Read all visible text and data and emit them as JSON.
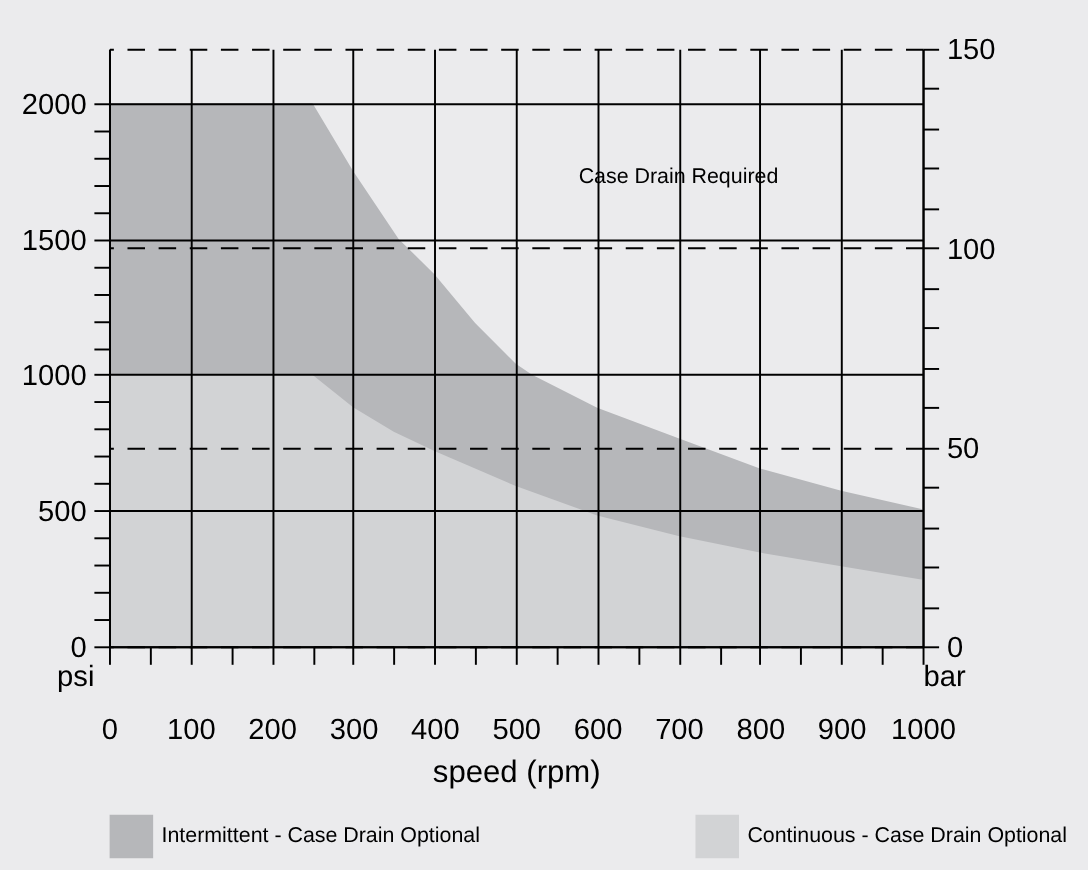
{
  "chart_data": {
    "type": "area",
    "xlabel": "speed (rpm)",
    "ylabel": "psi",
    "y2label": "bar",
    "series": [
      {
        "name": "Intermittent - Case Drain Optional",
        "color": "#b6b7ba",
        "x": [
          0,
          250,
          300,
          356,
          400,
          450,
          500,
          520,
          600,
          700,
          800,
          900,
          1000
        ],
        "values": [
          2000,
          2000,
          1750,
          1500,
          1370,
          1190,
          1040,
          1000,
          878,
          766,
          655,
          573,
          505
        ]
      },
      {
        "name": "Continuous - Case Drain Optional",
        "color": "#d2d3d5",
        "x": [
          0,
          250,
          300,
          350,
          400,
          500,
          600,
          700,
          800,
          900,
          1000
        ],
        "values": [
          1000,
          1000,
          880,
          790,
          719,
          590,
          482,
          406,
          345,
          295,
          245
        ]
      }
    ],
    "xlim": [
      0,
      1000
    ],
    "ylim": [
      0,
      2200
    ],
    "y2lim": [
      0,
      150
    ],
    "xticks": [
      0,
      {
        "value": 50,
        "label": null
      },
      100,
      {
        "value": 150,
        "label": null
      },
      200,
      {
        "value": 250,
        "label": null
      },
      300,
      {
        "value": 350,
        "label": null
      },
      400,
      {
        "value": 450,
        "label": null
      },
      500,
      {
        "value": 550,
        "label": null
      },
      600,
      {
        "value": 650,
        "label": null
      },
      700,
      {
        "value": 750,
        "label": null
      },
      800,
      {
        "value": 850,
        "label": null
      },
      900,
      {
        "value": 950,
        "label": null
      },
      1000
    ],
    "yticks": [
      0,
      {
        "value": 100,
        "label": null
      },
      {
        "value": 200,
        "label": null
      },
      {
        "value": 300,
        "label": null
      },
      {
        "value": 400,
        "label": null
      },
      500,
      {
        "value": 600,
        "label": null
      },
      {
        "value": 700,
        "label": null
      },
      {
        "value": 800,
        "label": null
      },
      {
        "value": 900,
        "label": null
      },
      1000,
      {
        "value": 1100,
        "label": null
      },
      {
        "value": 1200,
        "label": null
      },
      {
        "value": 1300,
        "label": null
      },
      {
        "value": 1400,
        "label": null
      },
      1500,
      {
        "value": 1600,
        "label": null
      },
      {
        "value": 1700,
        "label": null
      },
      {
        "value": 1800,
        "label": null
      },
      {
        "value": 1900,
        "label": null
      },
      2000
    ],
    "y2ticks": [
      0,
      {
        "value": 10,
        "label": null
      },
      {
        "value": 20,
        "label": null
      },
      {
        "value": 30,
        "label": null
      },
      {
        "value": 40,
        "label": null
      },
      50,
      {
        "value": 60,
        "label": null
      },
      {
        "value": 70,
        "label": null
      },
      {
        "value": 80,
        "label": null
      },
      {
        "value": 90,
        "label": null
      },
      100,
      {
        "value": 110,
        "label": null
      },
      {
        "value": 120,
        "label": null
      },
      {
        "value": 130,
        "label": null
      },
      {
        "value": 140,
        "label": null
      },
      150
    ],
    "annotations": [
      "Case Drain Required"
    ],
    "grid": true,
    "legend": "bottom"
  }
}
